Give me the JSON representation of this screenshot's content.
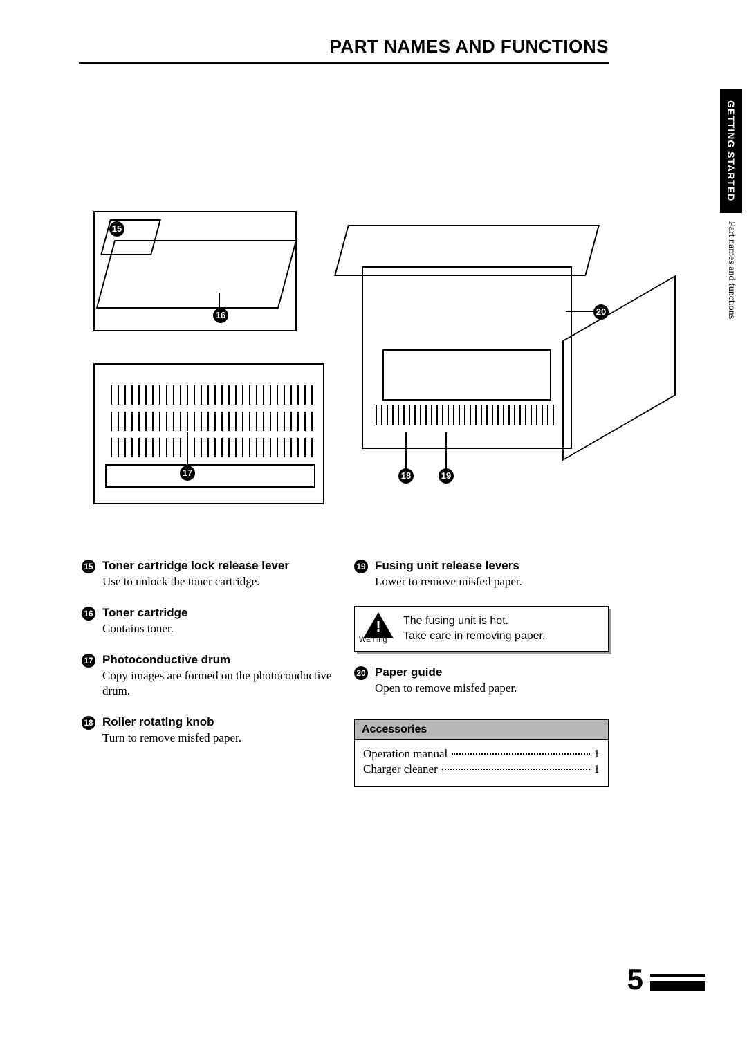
{
  "page": {
    "title": "PART NAMES AND FUNCTIONS",
    "number": "5",
    "section_tab": "GETTING STARTED",
    "section_sub": "Part names and functions"
  },
  "callouts": {
    "n15": "15",
    "n16": "16",
    "n17": "17",
    "n18": "18",
    "n19": "19",
    "n20": "20"
  },
  "left_items": [
    {
      "num": "15",
      "heading": "Toner cartridge lock release lever",
      "desc": "Use to unlock the toner cartridge."
    },
    {
      "num": "16",
      "heading": "Toner cartridge",
      "desc": "Contains toner."
    },
    {
      "num": "17",
      "heading": "Photoconductive drum",
      "desc": "Copy images are formed on the photoconductive drum."
    },
    {
      "num": "18",
      "heading": "Roller rotating knob",
      "desc": "Turn to remove misfed paper."
    }
  ],
  "right_items": [
    {
      "num": "19",
      "heading": "Fusing unit release levers",
      "desc": "Lower to remove misfed paper."
    }
  ],
  "warning": {
    "label": "Warning",
    "line1": "The fusing unit is hot.",
    "line2": "Take care in removing paper."
  },
  "right_items2": [
    {
      "num": "20",
      "heading": "Paper guide",
      "desc": "Open to remove misfed paper."
    }
  ],
  "accessories": {
    "heading": "Accessories",
    "rows": [
      {
        "label": "Operation manual",
        "qty": "1"
      },
      {
        "label": "Charger cleaner",
        "qty": "1"
      }
    ]
  },
  "colors": {
    "page_bg": "#ffffff",
    "outer_bg": "#cccccc",
    "tab_bg": "#000000",
    "tab_fg": "#ffffff",
    "acc_header_bg": "#b7b7b7",
    "shadow": "#999999"
  },
  "fonts": {
    "heading_family": "Arial, Helvetica, sans-serif",
    "body_family": "Times New Roman, Times, serif",
    "title_size_pt": 20,
    "entry_heading_size_pt": 13,
    "entry_desc_size_pt": 13,
    "warning_text_size_pt": 12,
    "page_number_size_pt": 32
  }
}
